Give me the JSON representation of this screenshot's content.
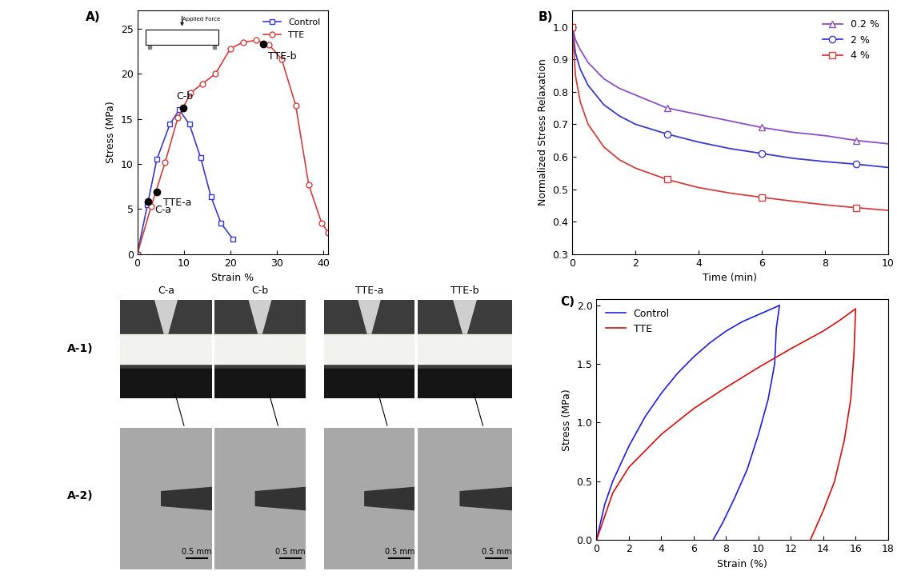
{
  "chart_data": [
    {
      "type": "line",
      "panel": "A)",
      "xlabel": "Strain %",
      "ylabel": "Stress (MPa)",
      "xlim": [
        0,
        41
      ],
      "xticks": [
        0,
        10,
        20,
        30,
        40
      ],
      "ylim": [
        0,
        27
      ],
      "yticks": [
        0,
        5,
        10,
        15,
        20,
        25
      ],
      "legend": "upper right",
      "inset_text": "Applied Force",
      "series": [
        {
          "name": "Control",
          "color": "#3a3ac8",
          "marker": "square",
          "x": [
            0,
            2.2,
            4.2,
            7.0,
            9.0,
            11.2,
            13.6,
            15.8,
            18.0,
            20.5
          ],
          "values": [
            0,
            5.5,
            10.5,
            14.4,
            16.0,
            14.4,
            10.7,
            6.4,
            3.4,
            1.7
          ]
        },
        {
          "name": "TTE",
          "color": "#d04040",
          "marker": "circle",
          "x": [
            0,
            3.0,
            6.0,
            8.7,
            11.5,
            14.0,
            16.8,
            20.0,
            22.8,
            25.5,
            28.3,
            31.0,
            34.0,
            36.8,
            39.6,
            41.0
          ],
          "values": [
            0,
            5.3,
            10.2,
            15.1,
            17.9,
            18.9,
            20.0,
            22.8,
            23.5,
            23.7,
            23.2,
            21.6,
            16.5,
            7.7,
            3.4,
            2.4
          ]
        }
      ],
      "points": [
        {
          "label": "C-a",
          "x": 2.3,
          "y": 5.8
        },
        {
          "label": "TTE-a",
          "x": 4.2,
          "y": 6.9
        },
        {
          "label": "C-b",
          "x": 9.8,
          "y": 16.2
        },
        {
          "label": "TTE-b",
          "x": 27.1,
          "y": 23.3
        }
      ]
    },
    {
      "type": "line",
      "panel": "B)",
      "xlabel": "Time (min)",
      "ylabel": "Normalized Stress Relaxation",
      "xlim": [
        0,
        10
      ],
      "xticks": [
        0,
        2,
        4,
        6,
        8,
        10
      ],
      "ylim": [
        0.3,
        1.05
      ],
      "yticks": [
        0.3,
        0.4,
        0.5,
        0.6,
        0.7,
        0.8,
        0.9,
        {
          "value": 1.0,
          "label": "1.0"
        }
      ],
      "legend": "upper right",
      "x": [
        0,
        0.1,
        0.25,
        0.5,
        1,
        1.5,
        2,
        3,
        4,
        5,
        6,
        7,
        8,
        9,
        10
      ],
      "series": [
        {
          "name": "0.2 %",
          "color": "#8a4fc0",
          "marker": "triangle",
          "values": [
            1.0,
            0.96,
            0.93,
            0.89,
            0.84,
            0.81,
            0.79,
            0.75,
            0.73,
            0.71,
            0.69,
            0.675,
            0.665,
            0.65,
            0.64
          ]
        },
        {
          "name": "2 %",
          "color": "#3a3ac8",
          "marker": "circle",
          "values": [
            1.0,
            0.92,
            0.87,
            0.82,
            0.76,
            0.725,
            0.7,
            0.67,
            0.645,
            0.625,
            0.61,
            0.595,
            0.585,
            0.577,
            0.567
          ]
        },
        {
          "name": "4 %",
          "color": "#d04040",
          "marker": "square",
          "values": [
            1.0,
            0.85,
            0.77,
            0.7,
            0.63,
            0.59,
            0.565,
            0.53,
            0.505,
            0.488,
            0.475,
            0.463,
            0.452,
            0.443,
            0.435
          ]
        }
      ]
    },
    {
      "type": "line",
      "panel": "C)",
      "xlabel": "Strain (%)",
      "ylabel": "Stress (MPa)",
      "xlim": [
        0,
        18
      ],
      "xticks": [
        0,
        2,
        4,
        6,
        8,
        10,
        12,
        14,
        16,
        18
      ],
      "ylim": [
        0,
        2.05
      ],
      "yticks": [
        {
          "value": 0,
          "label": "0.0"
        },
        0.5,
        {
          "value": 1,
          "label": "1.0"
        },
        1.5,
        {
          "value": 2,
          "label": "2.0"
        }
      ],
      "legend": "upper left",
      "series": [
        {
          "name": "Control",
          "color": "#1f1fe0",
          "x": [
            0,
            0.5,
            1,
            2,
            3,
            4,
            5,
            6,
            7,
            8,
            9,
            10,
            11,
            11.3,
            11.1,
            11.0,
            10.6,
            10.0,
            9.3,
            8.5,
            7.8,
            7.2
          ],
          "values": [
            0,
            0.3,
            0.5,
            0.8,
            1.05,
            1.25,
            1.42,
            1.56,
            1.68,
            1.78,
            1.86,
            1.92,
            1.98,
            2.0,
            1.8,
            1.5,
            1.2,
            0.9,
            0.6,
            0.35,
            0.15,
            0
          ]
        },
        {
          "name": "TTE",
          "color": "#d01010",
          "x": [
            0,
            1,
            2,
            4,
            6,
            8,
            10,
            12,
            14,
            15,
            16,
            15.9,
            15.7,
            15.3,
            14.7,
            14.0,
            13.2
          ],
          "values": [
            0,
            0.4,
            0.62,
            0.9,
            1.12,
            1.3,
            1.47,
            1.63,
            1.78,
            1.87,
            1.97,
            1.6,
            1.2,
            0.85,
            0.5,
            0.25,
            0
          ]
        }
      ]
    }
  ],
  "images": {
    "row_labels": [
      "A-1)",
      "A-2)"
    ],
    "columns": [
      "C-a",
      "C-b",
      "TTE-a",
      "TTE-b"
    ],
    "scale_bar": "0.5 mm"
  }
}
